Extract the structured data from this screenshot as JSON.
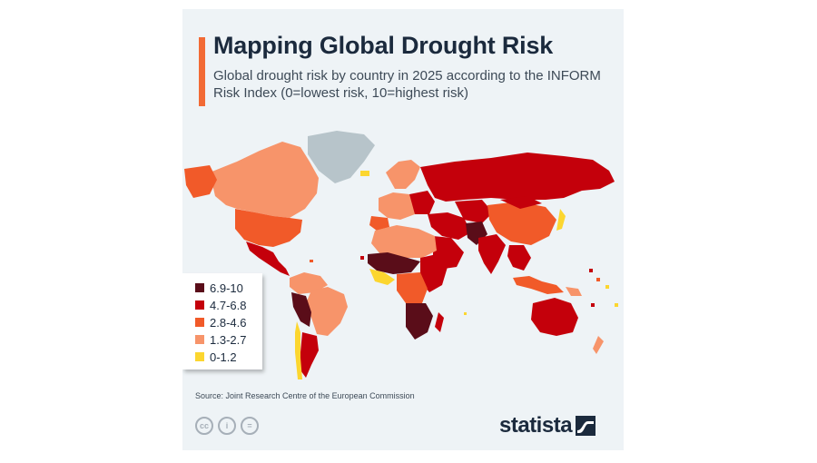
{
  "header": {
    "title": "Mapping Global Drought Risk",
    "subtitle": "Global drought risk by country in 2025 according to the INFORM Risk Index (0=lowest risk, 10=highest risk)"
  },
  "colors": {
    "accent": "#f26a35",
    "very_high": "#5a0d19",
    "high": "#c4000b",
    "medium": "#f15a29",
    "low": "#f7946a",
    "very_low": "#fcd62f",
    "no_data": "#b7c4ca"
  },
  "legend": {
    "items": [
      {
        "label": "6.9-10",
        "color": "#5a0d19"
      },
      {
        "label": "4.7-6.8",
        "color": "#c4000b"
      },
      {
        "label": "2.8-4.6",
        "color": "#f15a29"
      },
      {
        "label": "1.3-2.7",
        "color": "#f7946a"
      },
      {
        "label": "0-1.2",
        "color": "#fcd62f"
      }
    ]
  },
  "footer": {
    "source": "Source: Joint Research Centre of the European Commission",
    "license_icons": [
      "cc-icon",
      "person-icon",
      "equals-icon"
    ],
    "license_labels": [
      "cc",
      "i",
      "="
    ],
    "brand": "statista"
  }
}
